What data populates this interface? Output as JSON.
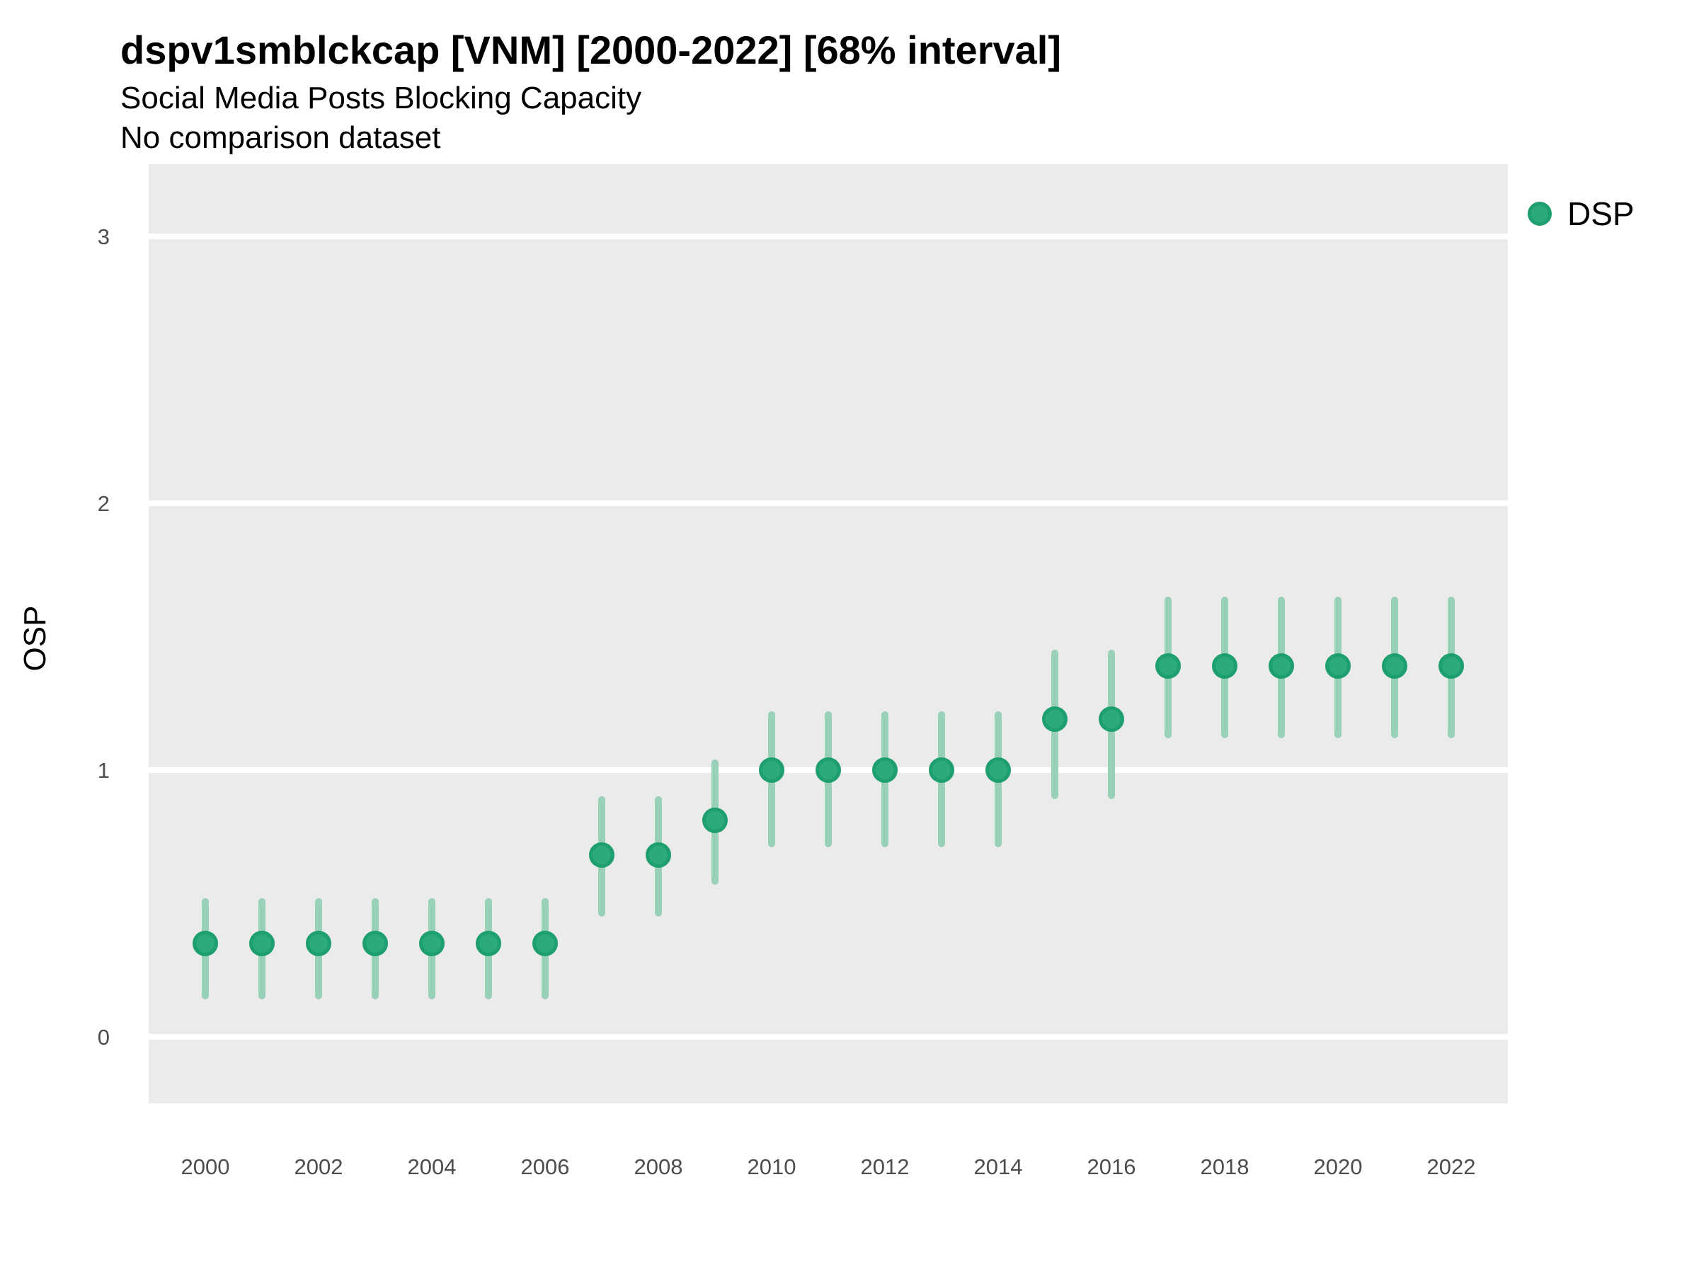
{
  "header": {
    "title": "dspv1smblckcap [VNM] [2000-2022] [68% interval]",
    "subtitle": "Social Media Posts Blocking Capacity",
    "note": "No comparison dataset"
  },
  "legend": {
    "label": "DSP",
    "position": "right"
  },
  "colors": {
    "point_fill": "#2BAA7B",
    "point_stroke": "#1E9F70",
    "interval_bar": "#99D1B8",
    "panel_background": "#EBEBEB",
    "gridline": "#FFFFFF",
    "tick_text": "#4D4D4D",
    "title_text": "#000000"
  },
  "chart_data": {
    "type": "pointrange",
    "title": "dspv1smblckcap [VNM] [2000-2022] [68% interval]",
    "subtitle": "Social Media Posts Blocking Capacity",
    "note": "No comparison dataset",
    "interval_level": "68%",
    "xlabel": "",
    "ylabel": "OSP",
    "xlim": [
      1999,
      2023
    ],
    "ylim": [
      -0.25,
      3.27
    ],
    "yticks": [
      0,
      1,
      2,
      3
    ],
    "xticks": [
      2000,
      2002,
      2004,
      2006,
      2008,
      2010,
      2012,
      2014,
      2016,
      2018,
      2020,
      2022
    ],
    "grid": "horizontal-major-only",
    "legend_position": "right",
    "series": [
      {
        "name": "DSP",
        "x": [
          2000,
          2001,
          2002,
          2003,
          2004,
          2005,
          2006,
          2007,
          2008,
          2009,
          2010,
          2011,
          2012,
          2013,
          2014,
          2015,
          2016,
          2017,
          2018,
          2019,
          2020,
          2021,
          2022
        ],
        "values": [
          0.35,
          0.35,
          0.35,
          0.35,
          0.35,
          0.35,
          0.35,
          0.68,
          0.68,
          0.81,
          1.0,
          1.0,
          1.0,
          1.0,
          1.0,
          1.19,
          1.19,
          1.39,
          1.39,
          1.39,
          1.39,
          1.39,
          1.39
        ],
        "lo": [
          0.14,
          0.14,
          0.14,
          0.14,
          0.14,
          0.14,
          0.14,
          0.45,
          0.45,
          0.57,
          0.71,
          0.71,
          0.71,
          0.71,
          0.71,
          0.89,
          0.89,
          1.12,
          1.12,
          1.12,
          1.12,
          1.12,
          1.12
        ],
        "hi": [
          0.52,
          0.52,
          0.52,
          0.52,
          0.52,
          0.52,
          0.52,
          0.9,
          0.9,
          1.04,
          1.22,
          1.22,
          1.22,
          1.22,
          1.22,
          1.45,
          1.45,
          1.65,
          1.65,
          1.65,
          1.65,
          1.65,
          1.65
        ]
      }
    ]
  }
}
